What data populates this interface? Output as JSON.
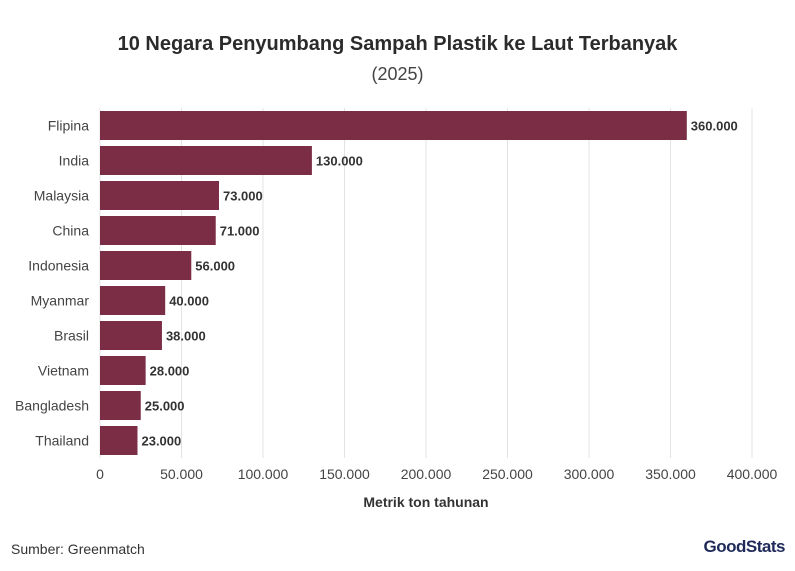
{
  "chart_data": {
    "type": "bar",
    "orientation": "horizontal",
    "title": "10 Negara Penyumbang Sampah Plastik ke Laut Terbanyak",
    "subtitle": "(2025)",
    "xlabel": "Metrik ton tahunan",
    "ylabel": "",
    "categories": [
      "Flipina",
      "India",
      "Malaysia",
      "China",
      "Indonesia",
      "Myanmar",
      "Brasil",
      "Vietnam",
      "Bangladesh",
      "Thailand"
    ],
    "values": [
      360000,
      130000,
      73000,
      71000,
      56000,
      40000,
      38000,
      28000,
      25000,
      23000
    ],
    "value_labels": [
      "360.000",
      "130.000",
      "73.000",
      "71.000",
      "56.000",
      "40.000",
      "38.000",
      "28.000",
      "25.000",
      "23.000"
    ],
    "xlim": [
      0,
      400000
    ],
    "xticks": [
      0,
      50000,
      100000,
      150000,
      200000,
      250000,
      300000,
      350000,
      400000
    ],
    "xtick_labels": [
      "0",
      "50.000",
      "100.000",
      "150.000",
      "200.000",
      "250.000",
      "300.000",
      "350.000",
      "400.000"
    ],
    "grid": true,
    "bar_color": "#7b2d45"
  },
  "footer": {
    "source": "Sumber: Greenmatch",
    "logo_part1": "Good",
    "logo_part2": "Stats"
  }
}
